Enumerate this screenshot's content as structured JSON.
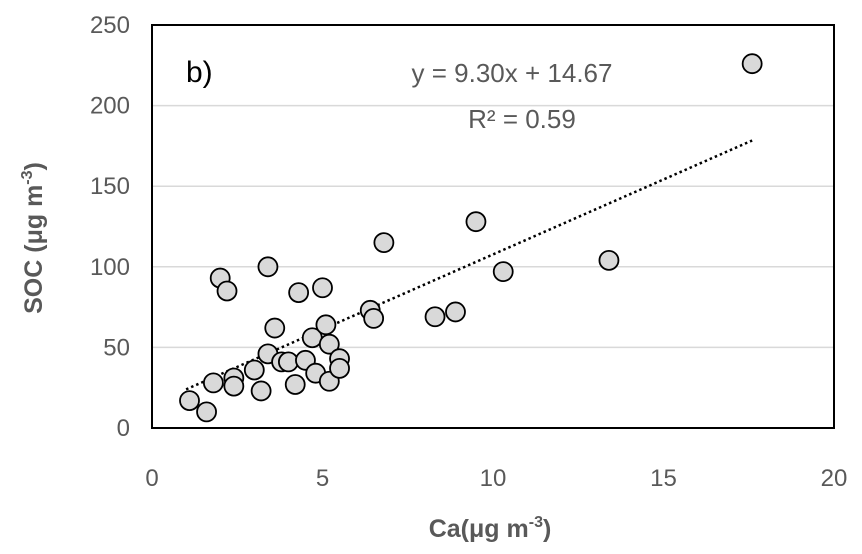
{
  "chart_data": {
    "type": "scatter",
    "panel_label": "b)",
    "equation": "y = 9.30x + 14.67",
    "r_squared": "R² = 0.59",
    "xlabel": {
      "main": "Ca(μg m",
      "sup": "-3",
      "close": ")"
    },
    "ylabel": {
      "main": "SOC (μg m",
      "sup": "-3",
      "close": ")"
    },
    "xlim": [
      0,
      20
    ],
    "ylim": [
      0,
      250
    ],
    "xticks": [
      0,
      5,
      10,
      15,
      20
    ],
    "yticks": [
      0,
      50,
      100,
      150,
      200,
      250
    ],
    "grid": "horizontal",
    "trendline": {
      "slope": 9.3,
      "intercept": 14.67,
      "x_range": [
        1.0,
        17.6
      ],
      "style": "dotted"
    },
    "marker_fill": "#d9d9d9",
    "marker_stroke": "#000000",
    "points": [
      {
        "x": 1.1,
        "y": 17
      },
      {
        "x": 1.6,
        "y": 10
      },
      {
        "x": 1.8,
        "y": 28
      },
      {
        "x": 2.0,
        "y": 93
      },
      {
        "x": 2.2,
        "y": 85
      },
      {
        "x": 2.4,
        "y": 31
      },
      {
        "x": 2.4,
        "y": 26
      },
      {
        "x": 3.0,
        "y": 36
      },
      {
        "x": 3.2,
        "y": 23
      },
      {
        "x": 3.4,
        "y": 100
      },
      {
        "x": 3.4,
        "y": 46
      },
      {
        "x": 3.6,
        "y": 62
      },
      {
        "x": 3.8,
        "y": 41
      },
      {
        "x": 4.0,
        "y": 41
      },
      {
        "x": 4.2,
        "y": 27
      },
      {
        "x": 4.3,
        "y": 84
      },
      {
        "x": 4.5,
        "y": 42
      },
      {
        "x": 4.7,
        "y": 56
      },
      {
        "x": 4.8,
        "y": 34
      },
      {
        "x": 5.0,
        "y": 87
      },
      {
        "x": 5.1,
        "y": 64
      },
      {
        "x": 5.2,
        "y": 52
      },
      {
        "x": 5.2,
        "y": 29
      },
      {
        "x": 5.5,
        "y": 43
      },
      {
        "x": 5.5,
        "y": 37
      },
      {
        "x": 6.4,
        "y": 73
      },
      {
        "x": 6.5,
        "y": 68
      },
      {
        "x": 6.8,
        "y": 115
      },
      {
        "x": 8.3,
        "y": 69
      },
      {
        "x": 8.9,
        "y": 72
      },
      {
        "x": 9.5,
        "y": 128
      },
      {
        "x": 10.3,
        "y": 97
      },
      {
        "x": 13.4,
        "y": 104
      },
      {
        "x": 17.6,
        "y": 226
      }
    ]
  }
}
